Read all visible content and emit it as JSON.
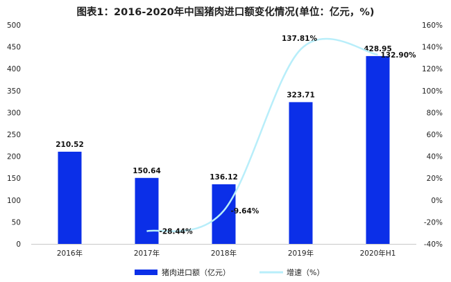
{
  "chart_data": {
    "type": "bar",
    "title": "图表1：2016-2020年中国猪肉进口额变化情况(单位：亿元，%)",
    "categories": [
      "2016年",
      "2017年",
      "2018年",
      "2019年",
      "2020年H1"
    ],
    "series": [
      {
        "name": "猪肉进口额（亿元）",
        "type": "bar",
        "axis": "left",
        "values": [
          210.52,
          150.64,
          136.12,
          323.71,
          428.95
        ],
        "labels": [
          "210.52",
          "150.64",
          "136.12",
          "323.71",
          "428.95"
        ],
        "color": "#0b2fe8"
      },
      {
        "name": "增速（%）",
        "type": "line",
        "axis": "right",
        "values": [
          null,
          -28.44,
          -9.64,
          137.81,
          132.9
        ],
        "labels": [
          "",
          "-28.44%",
          "-9.64%",
          "137.81%",
          "132.90%"
        ],
        "color": "#b8eefa"
      }
    ],
    "y_left": {
      "min": 0,
      "max": 500,
      "ticks": [
        "0",
        "50",
        "100",
        "150",
        "200",
        "250",
        "300",
        "350",
        "400",
        "450",
        "500"
      ]
    },
    "y_right": {
      "min": -40,
      "max": 160,
      "ticks": [
        "-40%",
        "-20%",
        "0%",
        "20%",
        "40%",
        "60%",
        "80%",
        "100%",
        "120%",
        "140%",
        "160%"
      ]
    },
    "grid": false,
    "legend": "bottom"
  }
}
